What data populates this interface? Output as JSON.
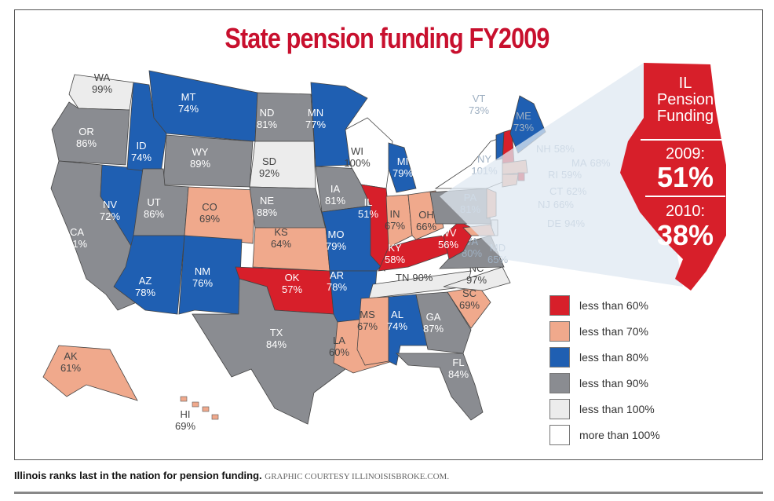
{
  "title": "State pension funding FY2009",
  "colors": {
    "lt60": "#d71f2a",
    "lt70": "#f0a98c",
    "lt80": "#1f5fb2",
    "lt90": "#8a8c91",
    "lt100": "#ececec",
    "gt100": "#ffffff"
  },
  "legend": [
    {
      "key": "lt60",
      "label": "less than 60%"
    },
    {
      "key": "lt70",
      "label": "less than 70%"
    },
    {
      "key": "lt80",
      "label": "less than  80%"
    },
    {
      "key": "lt90",
      "label": "less than 90%"
    },
    {
      "key": "lt100",
      "label": "less than 100%"
    },
    {
      "key": "gt100",
      "label": "more than 100%"
    }
  ],
  "states": [
    {
      "abbr": "WA",
      "value": "99%",
      "cat": "lt100"
    },
    {
      "abbr": "OR",
      "value": "86%",
      "cat": "lt90"
    },
    {
      "abbr": "CA",
      "value": "81%",
      "cat": "lt90"
    },
    {
      "abbr": "NV",
      "value": "72%",
      "cat": "lt80"
    },
    {
      "abbr": "ID",
      "value": "74%",
      "cat": "lt80"
    },
    {
      "abbr": "MT",
      "value": "74%",
      "cat": "lt80"
    },
    {
      "abbr": "WY",
      "value": "89%",
      "cat": "lt90"
    },
    {
      "abbr": "UT",
      "value": "86%",
      "cat": "lt90"
    },
    {
      "abbr": "AZ",
      "value": "78%",
      "cat": "lt80"
    },
    {
      "abbr": "CO",
      "value": "69%",
      "cat": "lt70"
    },
    {
      "abbr": "NM",
      "value": "76%",
      "cat": "lt80"
    },
    {
      "abbr": "ND",
      "value": "81%",
      "cat": "lt90"
    },
    {
      "abbr": "SD",
      "value": "92%",
      "cat": "lt100"
    },
    {
      "abbr": "NE",
      "value": "88%",
      "cat": "lt90"
    },
    {
      "abbr": "KS",
      "value": "64%",
      "cat": "lt70"
    },
    {
      "abbr": "OK",
      "value": "57%",
      "cat": "lt60"
    },
    {
      "abbr": "TX",
      "value": "84%",
      "cat": "lt90"
    },
    {
      "abbr": "MN",
      "value": "77%",
      "cat": "lt80"
    },
    {
      "abbr": "IA",
      "value": "81%",
      "cat": "lt90"
    },
    {
      "abbr": "MO",
      "value": "79%",
      "cat": "lt80"
    },
    {
      "abbr": "AR",
      "value": "78%",
      "cat": "lt80"
    },
    {
      "abbr": "LA",
      "value": "60%",
      "cat": "lt70"
    },
    {
      "abbr": "WI",
      "value": "100%",
      "cat": "gt100"
    },
    {
      "abbr": "IL",
      "value": "51%",
      "cat": "lt60"
    },
    {
      "abbr": "MI",
      "value": "79%",
      "cat": "lt80"
    },
    {
      "abbr": "IN",
      "value": "67%",
      "cat": "lt70"
    },
    {
      "abbr": "OH",
      "value": "66%",
      "cat": "lt70"
    },
    {
      "abbr": "KY",
      "value": "58%",
      "cat": "lt60"
    },
    {
      "abbr": "TN",
      "value": "90%",
      "cat": "lt100"
    },
    {
      "abbr": "MS",
      "value": "67%",
      "cat": "lt70"
    },
    {
      "abbr": "AL",
      "value": "74%",
      "cat": "lt80"
    },
    {
      "abbr": "GA",
      "value": "87%",
      "cat": "lt90"
    },
    {
      "abbr": "FL",
      "value": "84%",
      "cat": "lt90"
    },
    {
      "abbr": "SC",
      "value": "69%",
      "cat": "lt70"
    },
    {
      "abbr": "NC",
      "value": "97%",
      "cat": "lt100"
    },
    {
      "abbr": "VA",
      "value": "80%",
      "cat": "lt90"
    },
    {
      "abbr": "WV",
      "value": "56%",
      "cat": "lt60"
    },
    {
      "abbr": "PA",
      "value": "81%",
      "cat": "lt90"
    },
    {
      "abbr": "NY",
      "value": "101%",
      "cat": "gt100"
    },
    {
      "abbr": "VT",
      "value": "73%",
      "cat": "lt80"
    },
    {
      "abbr": "NH",
      "value": "58%",
      "cat": "lt60"
    },
    {
      "abbr": "ME",
      "value": "73%",
      "cat": "lt80"
    },
    {
      "abbr": "MA",
      "value": "68%",
      "cat": "lt70"
    },
    {
      "abbr": "RI",
      "value": "59%",
      "cat": "lt60"
    },
    {
      "abbr": "CT",
      "value": "62%",
      "cat": "lt70"
    },
    {
      "abbr": "NJ",
      "value": "66%",
      "cat": "lt70"
    },
    {
      "abbr": "DE",
      "value": "94%",
      "cat": "lt100"
    },
    {
      "abbr": "MD",
      "value": "65%",
      "cat": "lt70"
    },
    {
      "abbr": "AK",
      "value": "61%",
      "cat": "lt70"
    },
    {
      "abbr": "HI",
      "value": "69%",
      "cat": "lt70"
    }
  ],
  "callout": {
    "heading": [
      "IL",
      "Pension",
      "Funding"
    ],
    "year1": "2009:",
    "value1": "51%",
    "year2": "2010:",
    "value2": "38%"
  },
  "caption": {
    "bold": "Illinois ranks last in the nation for pension funding.",
    "credit": "GRAPHIC COURTESY ILLINOISISBROKE.COM."
  }
}
